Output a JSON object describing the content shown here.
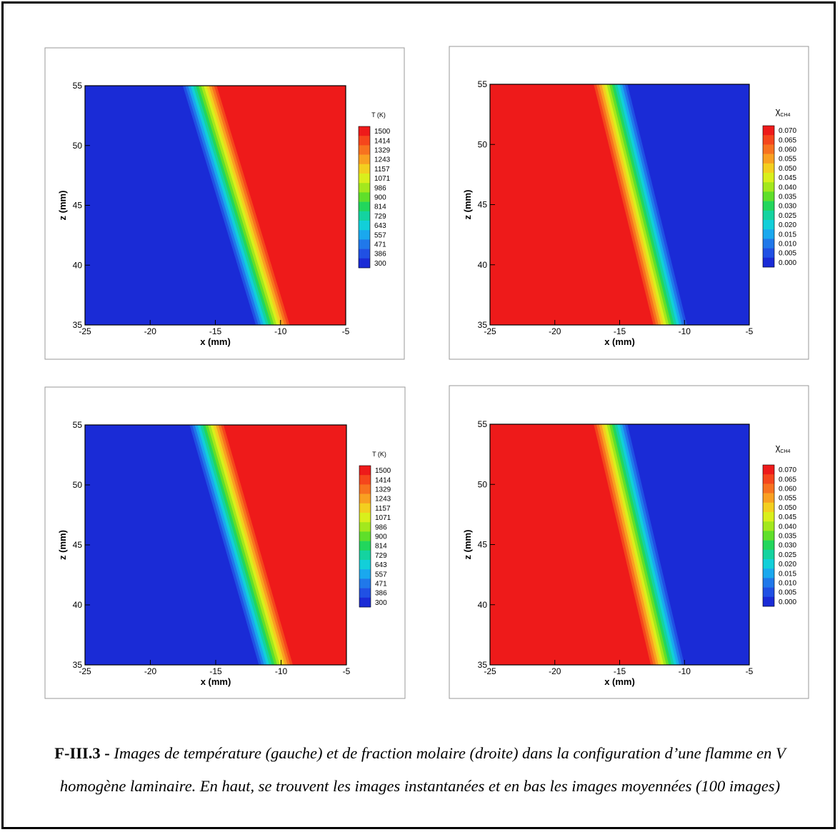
{
  "chart_data": [
    {
      "type": "contour",
      "title": "T (K)",
      "xlabel": "x (mm)",
      "ylabel": "z (mm)",
      "xlim": [
        -25,
        -5
      ],
      "ylim": [
        35,
        55
      ],
      "xticks": [
        -25,
        -20,
        -15,
        -10,
        -5
      ],
      "yticks": [
        35,
        40,
        45,
        50,
        55
      ],
      "levels": [
        1500,
        1414,
        1329,
        1243,
        1157,
        1071,
        986,
        900,
        814,
        729,
        643,
        557,
        471,
        386,
        300
      ],
      "colors": [
        "#ee1a1a",
        "#f5461c",
        "#f7721f",
        "#f9a021",
        "#f3cf1f",
        "#d9ef1c",
        "#a3e81d",
        "#5fdf2a",
        "#22d65c",
        "#14d3a0",
        "#12cfd9",
        "#1aa8ee",
        "#2078ea",
        "#2050e4",
        "#1a2bd6"
      ],
      "front": {
        "x": [
          -16.3,
          -10.7
        ],
        "z": [
          55,
          35
        ]
      },
      "high_side": "right"
    },
    {
      "type": "contour",
      "title": "χ",
      "title_sub": "CH4",
      "xlabel": "x (mm)",
      "ylabel": "z (mm)",
      "xlim": [
        -25,
        -5
      ],
      "ylim": [
        35,
        55
      ],
      "xticks": [
        -25,
        -20,
        -15,
        -10,
        -5
      ],
      "yticks": [
        35,
        40,
        45,
        50,
        55
      ],
      "levels": [
        {
          "value": 0.07,
          "label": "0.070"
        },
        {
          "value": 0.065,
          "label": "0.065"
        },
        {
          "value": 0.06,
          "label": "0.060"
        },
        {
          "value": 0.055,
          "label": "0.055"
        },
        {
          "value": 0.05,
          "label": "0.050"
        },
        {
          "value": 0.045,
          "label": "0.045"
        },
        {
          "value": 0.04,
          "label": "0.040"
        },
        {
          "value": 0.035,
          "label": "0.035"
        },
        {
          "value": 0.03,
          "label": "0.030"
        },
        {
          "value": 0.025,
          "label": "0.025"
        },
        {
          "value": 0.02,
          "label": "0.020"
        },
        {
          "value": 0.015,
          "label": "0.015"
        },
        {
          "value": 0.01,
          "label": "0.010"
        },
        {
          "value": 0.005,
          "label": "0.005"
        },
        {
          "value": 0,
          "label": "0.000"
        }
      ],
      "colors": [
        "#ee1a1a",
        "#f5461c",
        "#f7721f",
        "#f9a021",
        "#f3cf1f",
        "#d9ef1c",
        "#a3e81d",
        "#5fdf2a",
        "#22d65c",
        "#14d3a0",
        "#12cfd9",
        "#1aa8ee",
        "#2078ea",
        "#2050e4",
        "#1a2bd6"
      ],
      "front": {
        "x": [
          -15.6,
          -11.0
        ],
        "z": [
          55,
          35
        ]
      },
      "high_side": "left"
    },
    {
      "type": "contour",
      "title": "T (K)",
      "xlabel": "x (mm)",
      "ylabel": "z (mm)",
      "xlim": [
        -25,
        -5
      ],
      "ylim": [
        35,
        55
      ],
      "xticks": [
        -25,
        -20,
        -15,
        -10,
        -5
      ],
      "yticks": [
        35,
        40,
        45,
        50,
        55
      ],
      "levels": [
        1500,
        1414,
        1329,
        1243,
        1157,
        1071,
        986,
        900,
        814,
        729,
        643,
        557,
        471,
        386,
        300
      ],
      "colors": [
        "#ee1a1a",
        "#f5461c",
        "#f7721f",
        "#f9a021",
        "#f3cf1f",
        "#d9ef1c",
        "#a3e81d",
        "#5fdf2a",
        "#22d65c",
        "#14d3a0",
        "#12cfd9",
        "#1aa8ee",
        "#2078ea",
        "#2050e4",
        "#1a2bd6"
      ],
      "front": {
        "x": [
          -15.8,
          -10.5
        ],
        "z": [
          55,
          35
        ]
      },
      "high_side": "right"
    },
    {
      "type": "contour",
      "title": "χ",
      "title_sub": "CH4",
      "xlabel": "x (mm)",
      "ylabel": "z (mm)",
      "xlim": [
        -25,
        -5
      ],
      "ylim": [
        35,
        55
      ],
      "xticks": [
        -25,
        -20,
        -15,
        -10,
        -5
      ],
      "yticks": [
        35,
        40,
        45,
        50,
        55
      ],
      "levels": [
        {
          "value": 0.07,
          "label": "0.070"
        },
        {
          "value": 0.065,
          "label": "0.065"
        },
        {
          "value": 0.06,
          "label": "0.060"
        },
        {
          "value": 0.055,
          "label": "0.055"
        },
        {
          "value": 0.05,
          "label": "0.050"
        },
        {
          "value": 0.045,
          "label": "0.045"
        },
        {
          "value": 0.04,
          "label": "0.040"
        },
        {
          "value": 0.035,
          "label": "0.035"
        },
        {
          "value": 0.03,
          "label": "0.030"
        },
        {
          "value": 0.025,
          "label": "0.025"
        },
        {
          "value": 0.02,
          "label": "0.020"
        },
        {
          "value": 0.015,
          "label": "0.015"
        },
        {
          "value": 0.01,
          "label": "0.010"
        },
        {
          "value": 0.005,
          "label": "0.005"
        },
        {
          "value": 0,
          "label": "0.000"
        }
      ],
      "colors": [
        "#ee1a1a",
        "#f5461c",
        "#f7721f",
        "#f9a021",
        "#f3cf1f",
        "#d9ef1c",
        "#a3e81d",
        "#5fdf2a",
        "#22d65c",
        "#14d3a0",
        "#12cfd9",
        "#1aa8ee",
        "#2078ea",
        "#2050e4",
        "#1a2bd6"
      ],
      "front": {
        "x": [
          -15.6,
          -11.2
        ],
        "z": [
          55,
          35
        ]
      },
      "high_side": "left"
    }
  ],
  "caption": {
    "label": "F-III.3 -",
    "text": "Images de température (gauche) et de fraction molaire (droite) dans la configuration d’une flamme en V homogène laminaire. En haut, se trouvent les images instantanées et en bas les images moyennées (100 images)"
  }
}
